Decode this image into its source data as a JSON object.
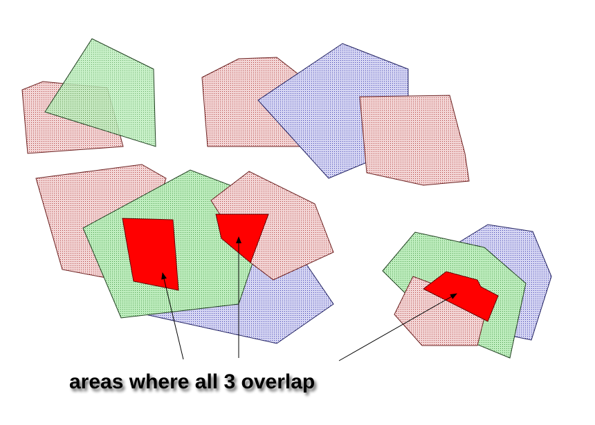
{
  "annotation": "areas where all 3 overlap"
}
